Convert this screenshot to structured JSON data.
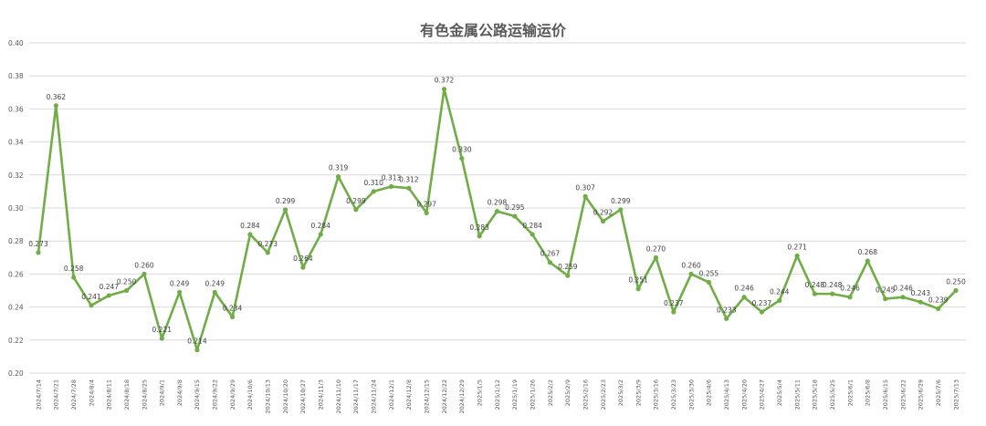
{
  "chart_data": {
    "type": "line",
    "title": "有色金属公路运输运价",
    "xlabel": "",
    "ylabel": "",
    "ylim": [
      0.2,
      0.4
    ],
    "yticks": [
      "0.20",
      "0.22",
      "0.24",
      "0.26",
      "0.28",
      "0.30",
      "0.32",
      "0.34",
      "0.36",
      "0.38",
      "0.40"
    ],
    "grid": true,
    "legend": "none",
    "line_color": "#70ad47",
    "categories": [
      "2024/7/14",
      "2024/7/21",
      "2024/7/28",
      "2024/8/4",
      "2024/8/11",
      "2024/8/18",
      "2024/8/25",
      "2024/9/1",
      "2024/9/8",
      "2024/9/15",
      "2024/9/22",
      "2024/9/29",
      "2024/10/6",
      "2024/10/13",
      "2024/10/20",
      "2024/10/27",
      "2024/11/3",
      "2024/11/10",
      "2024/11/17",
      "2024/11/24",
      "2024/12/1",
      "2024/12/8",
      "2024/12/15",
      "2024/12/22",
      "2024/12/29",
      "2025/1/5",
      "2025/1/12",
      "2025/1/19",
      "2025/1/26",
      "2025/2/2",
      "2025/2/9",
      "2025/2/16",
      "2025/2/23",
      "2025/3/2",
      "2025/3/9",
      "2025/3/16",
      "2025/3/23",
      "2025/3/30",
      "2025/4/6",
      "2025/4/13",
      "2025/4/20",
      "2025/4/27",
      "2025/5/4",
      "2025/5/11",
      "2025/5/18",
      "2025/5/25",
      "2025/6/1",
      "2025/6/8",
      "2025/6/15",
      "2025/6/22",
      "2025/6/29",
      "2025/7/6",
      "2025/7/13"
    ],
    "series": [
      {
        "values": [
          0.273,
          0.362,
          0.258,
          0.241,
          0.247,
          0.25,
          0.26,
          0.221,
          0.249,
          0.214,
          0.249,
          0.234,
          0.284,
          0.273,
          0.299,
          0.264,
          0.284,
          0.319,
          0.299,
          0.31,
          0.313,
          0.312,
          0.297,
          0.372,
          0.33,
          0.283,
          0.298,
          0.295,
          0.284,
          0.267,
          0.259,
          0.307,
          0.292,
          0.299,
          0.251,
          0.27,
          0.237,
          0.26,
          0.255,
          0.233,
          0.246,
          0.237,
          0.244,
          0.271,
          0.248,
          0.248,
          0.246,
          0.268,
          0.245,
          0.246,
          0.243,
          0.239,
          0.25
        ],
        "labels": [
          "0.273",
          "0.362",
          "0.258",
          "0.241",
          "0.247",
          "0.250",
          "0.260",
          "0.221",
          "0.249",
          "0.214",
          "0.249",
          "0.234",
          "0.284",
          "0.273",
          "0.299",
          "0.264",
          "0.284",
          "0.319",
          "0.299",
          "0.310",
          "0.313",
          "0.312",
          "0.297",
          "0.372",
          "0.330",
          "0.283",
          "0.298",
          "0.295",
          "0.284",
          "0.267",
          "0.259",
          "0.307",
          "0.292",
          "0.299",
          "0.251",
          "0.270",
          "0.237",
          "0.260",
          "0.255",
          "0.233",
          "0.246",
          "0.237",
          "0.244",
          "0.271",
          "0.248",
          "0.248",
          "0.246",
          "0.268",
          "0.245",
          "0.246",
          "0.243",
          "0.239",
          "0.250"
        ]
      }
    ]
  }
}
